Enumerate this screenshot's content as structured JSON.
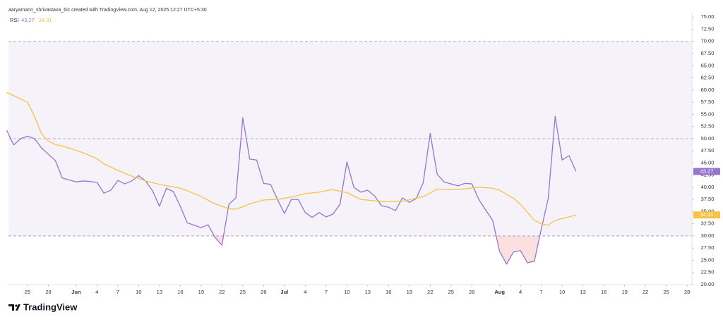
{
  "chart_data": {
    "type": "line",
    "header": "aaryamann_shrivastava_bic created with TradingView.com, Aug 12, 2025 12:27 UTC+5:30",
    "legend_label": "RSI",
    "brand": "TradingView",
    "xlim": [
      -2.75,
      95.7
    ],
    "ylim": [
      20,
      75.9
    ],
    "grid": false,
    "bands": {
      "upper": 70,
      "middle": 50,
      "lower": 30
    },
    "band_fill": "rgba(126,87,194,0.08)",
    "oversold_fill": "rgba(239,83,80,0.18)",
    "xticks": [
      {
        "value": 0,
        "label": "25"
      },
      {
        "value": 3,
        "label": "28"
      },
      {
        "value": 7,
        "label": "Jun"
      },
      {
        "value": 10,
        "label": "4"
      },
      {
        "value": 13,
        "label": "7"
      },
      {
        "value": 16,
        "label": "10"
      },
      {
        "value": 19,
        "label": "13"
      },
      {
        "value": 22,
        "label": "16"
      },
      {
        "value": 25,
        "label": "19"
      },
      {
        "value": 28,
        "label": "22"
      },
      {
        "value": 31,
        "label": "25"
      },
      {
        "value": 34,
        "label": "28"
      },
      {
        "value": 37,
        "label": "Jul"
      },
      {
        "value": 40,
        "label": "4"
      },
      {
        "value": 43,
        "label": "7"
      },
      {
        "value": 46,
        "label": "10"
      },
      {
        "value": 49,
        "label": "13"
      },
      {
        "value": 52,
        "label": "16"
      },
      {
        "value": 55,
        "label": "19"
      },
      {
        "value": 58,
        "label": "22"
      },
      {
        "value": 61,
        "label": "25"
      },
      {
        "value": 64,
        "label": "28"
      },
      {
        "value": 68,
        "label": "Aug"
      },
      {
        "value": 71,
        "label": "4"
      },
      {
        "value": 74,
        "label": "7"
      },
      {
        "value": 77,
        "label": "10"
      },
      {
        "value": 80,
        "label": "13"
      },
      {
        "value": 83,
        "label": "16"
      },
      {
        "value": 86,
        "label": "19"
      },
      {
        "value": 89,
        "label": "22"
      },
      {
        "value": 92,
        "label": "25"
      },
      {
        "value": 95,
        "label": "28"
      }
    ],
    "yticks": [
      {
        "value": 75,
        "label": "75.00"
      },
      {
        "value": 72.5,
        "label": "72.50"
      },
      {
        "value": 70,
        "label": "70.00"
      },
      {
        "value": 67.5,
        "label": "67.50"
      },
      {
        "value": 65,
        "label": "65.00"
      },
      {
        "value": 62.5,
        "label": "62.50"
      },
      {
        "value": 60,
        "label": "60.00"
      },
      {
        "value": 57.5,
        "label": "57.50"
      },
      {
        "value": 55,
        "label": "55.00"
      },
      {
        "value": 52.5,
        "label": "52.50"
      },
      {
        "value": 50,
        "label": "50.00"
      },
      {
        "value": 47.5,
        "label": "47.50"
      },
      {
        "value": 45,
        "label": "45.00"
      },
      {
        "value": 42.5,
        "label": "42.50"
      },
      {
        "value": 40,
        "label": "40.00"
      },
      {
        "value": 37.5,
        "label": "37.50"
      },
      {
        "value": 35,
        "label": "35.00"
      },
      {
        "value": 32.5,
        "label": "32.50"
      },
      {
        "value": 30,
        "label": "30.00"
      },
      {
        "value": 27.5,
        "label": "27.50"
      },
      {
        "value": 25,
        "label": "25.00"
      },
      {
        "value": 22.5,
        "label": "22.50"
      },
      {
        "value": 20,
        "label": "20.00"
      }
    ],
    "series": [
      {
        "color": "#9575cd",
        "x": [
          -3,
          -2,
          -1,
          0,
          1,
          2,
          3,
          4,
          5,
          6,
          7,
          8,
          9,
          10,
          11,
          12,
          13,
          14,
          15,
          16,
          17,
          18,
          19,
          20,
          21,
          22,
          23,
          24,
          25,
          26,
          27,
          28,
          29,
          30,
          31,
          32,
          33,
          34,
          35,
          36,
          37,
          38,
          39,
          40,
          41,
          42,
          43,
          44,
          45,
          46,
          47,
          48,
          49,
          50,
          51,
          52,
          53,
          54,
          55,
          56,
          57,
          58,
          59,
          60,
          61,
          62,
          63,
          64,
          65,
          66,
          67,
          68,
          69,
          70,
          71,
          72,
          73,
          74,
          75,
          76,
          77,
          78,
          79
        ],
        "values": [
          51.7,
          48.7,
          50.0,
          50.5,
          50.0,
          48.1,
          46.8,
          45.5,
          41.9,
          41.5,
          41.1,
          41.3,
          41.2,
          41.0,
          38.8,
          39.4,
          41.4,
          40.7,
          41.3,
          42.4,
          41.3,
          39.3,
          36.1,
          39.8,
          39.1,
          36.1,
          32.7,
          32.2,
          31.7,
          32.3,
          29.7,
          28.1,
          36.5,
          37.8,
          54.3,
          45.8,
          45.6,
          40.8,
          40.6,
          37.5,
          34.6,
          37.5,
          37.5,
          34.8,
          33.8,
          34.8,
          33.9,
          34.5,
          36.5,
          45.2,
          40.0,
          39.0,
          39.4,
          38.2,
          36.2,
          35.9,
          35.2,
          37.8,
          36.9,
          37.7,
          41.0,
          51.1,
          42.7,
          41.1,
          40.7,
          40.3,
          40.8,
          40.7,
          37.5,
          35.3,
          33.2,
          26.8,
          24.2,
          26.7,
          27.0,
          24.5,
          24.8,
          31.4,
          37.7,
          54.6,
          45.6,
          46.5,
          43.27
        ]
      },
      {
        "color": "#f6c344",
        "x": [
          -3,
          0,
          1,
          2,
          3,
          4,
          5,
          7,
          8,
          10,
          11,
          13,
          15,
          17,
          19,
          22,
          23,
          25,
          27,
          29,
          30,
          31,
          32,
          34,
          36,
          38,
          40,
          42,
          43,
          44,
          46,
          48,
          51,
          54,
          57,
          59,
          61,
          63,
          65,
          67,
          68,
          70,
          71,
          73,
          74,
          75,
          76,
          78,
          79
        ],
        "values": [
          59.5,
          57.5,
          54.6,
          51.0,
          49.5,
          48.8,
          48.5,
          47.6,
          47.1,
          45.9,
          44.8,
          43.5,
          42.3,
          41.3,
          40.6,
          39.8,
          39.3,
          38.1,
          36.6,
          35.6,
          35.5,
          36.0,
          36.6,
          37.4,
          37.5,
          38.0,
          38.7,
          39.0,
          39.3,
          39.5,
          38.9,
          37.5,
          37.1,
          37.1,
          38.1,
          39.6,
          39.5,
          39.7,
          40.0,
          39.8,
          39.4,
          37.7,
          36.5,
          33.2,
          32.5,
          32.2,
          33.2,
          33.9,
          34.31
        ]
      }
    ]
  }
}
